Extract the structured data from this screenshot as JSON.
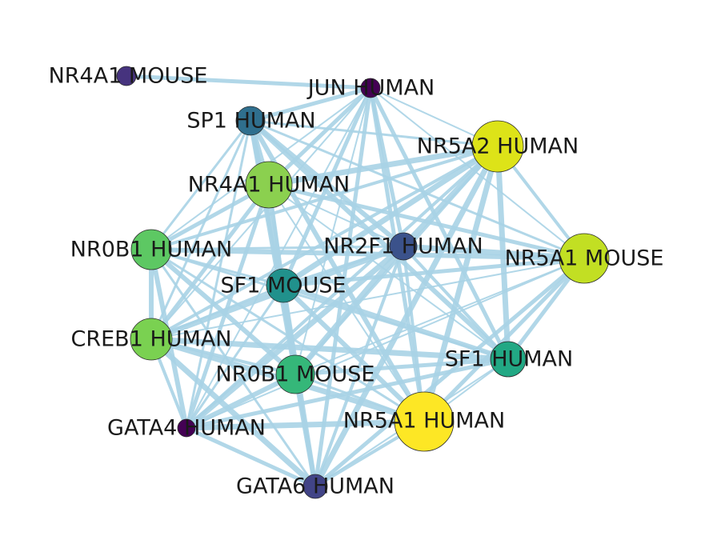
{
  "nodes": [
    {
      "id": "NR4A1_MOUSE",
      "label": "NR4A1 MOUSE",
      "color": "#46337e"
    },
    {
      "id": "JUN_HUMAN",
      "label": "JUN HUMAN",
      "color": "#440154"
    },
    {
      "id": "SP1_HUMAN",
      "label": "SP1 HUMAN",
      "color": "#2f6f8e"
    },
    {
      "id": "NR5A2_HUMAN",
      "label": "NR5A2 HUMAN",
      "color": "#dde318"
    },
    {
      "id": "NR4A1_HUMAN",
      "label": "NR4A1 HUMAN",
      "color": "#8bd04f"
    },
    {
      "id": "NR0B1_HUMAN",
      "label": "NR0B1 HUMAN",
      "color": "#5dc863"
    },
    {
      "id": "NR2F1_HUMAN",
      "label": "NR2F1 HUMAN",
      "color": "#3b528b"
    },
    {
      "id": "NR5A1_MOUSE",
      "label": "NR5A1 MOUSE",
      "color": "#c2df23"
    },
    {
      "id": "SF1_MOUSE",
      "label": "SF1 MOUSE",
      "color": "#21918c"
    },
    {
      "id": "CREB1_HUMAN",
      "label": "CREB1 HUMAN",
      "color": "#7ad151"
    },
    {
      "id": "SF1_HUMAN",
      "label": "SF1 HUMAN",
      "color": "#22a884"
    },
    {
      "id": "NR0B1_MOUSE",
      "label": "NR0B1 MOUSE",
      "color": "#35b779"
    },
    {
      "id": "NR5A1_HUMAN",
      "label": "NR5A1 HUMAN",
      "color": "#fde725"
    },
    {
      "id": "GATA4_HUMAN",
      "label": "GATA4 HUMAN",
      "color": "#440154"
    },
    {
      "id": "GATA6_HUMAN",
      "label": "GATA6 HUMAN",
      "color": "#414487"
    }
  ]
}
